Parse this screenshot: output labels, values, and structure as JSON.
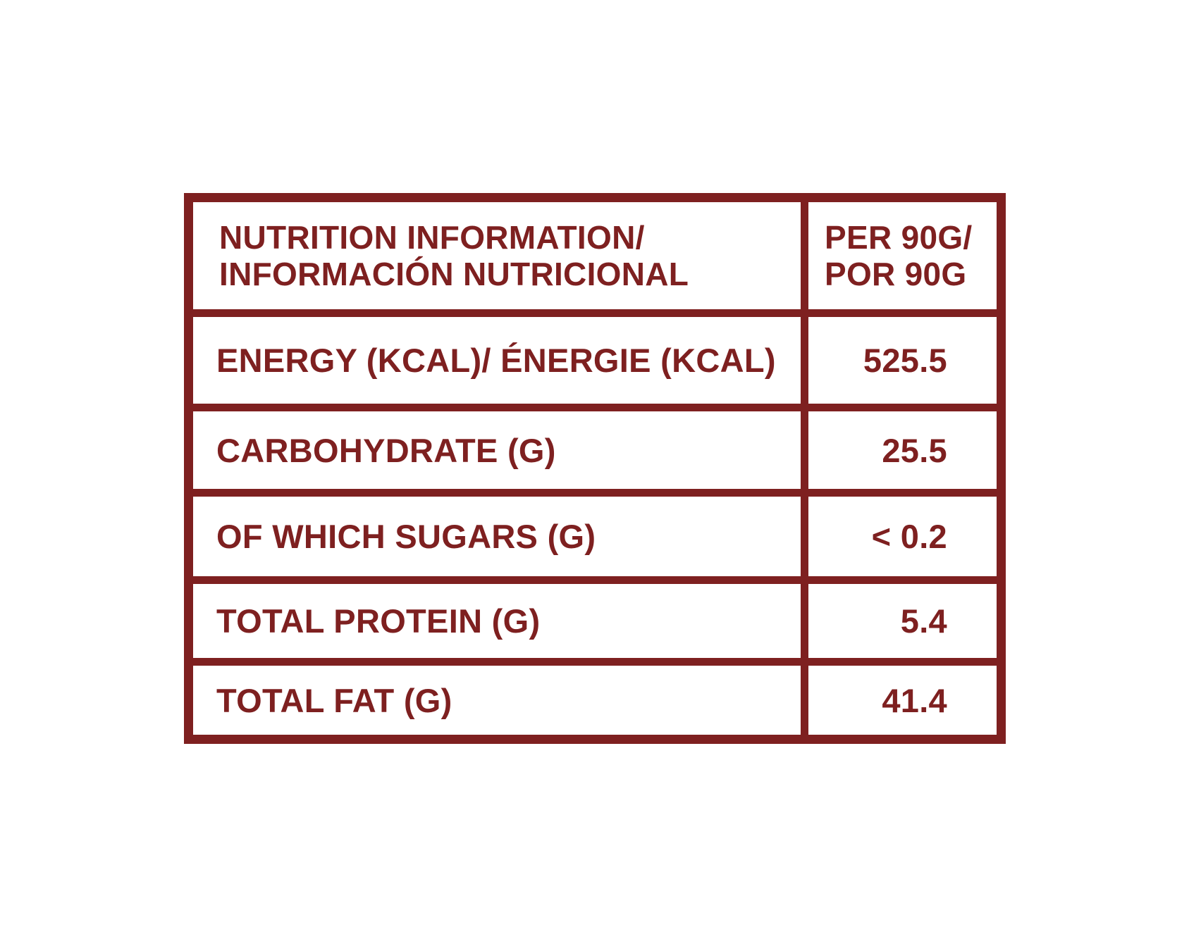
{
  "header": {
    "title_line1": "NUTRITION INFORMATION/",
    "title_line2": "INFORMACIÓN NUTRICIONAL",
    "serving_line1": "PER 90G/",
    "serving_line2": "POR 90G"
  },
  "rows": [
    {
      "label": "ENERGY (KCAL)/ ÉNERGIE (KCAL)",
      "value": "525.5"
    },
    {
      "label": "CARBOHYDRATE (G)",
      "value": "25.5"
    },
    {
      "label": "OF WHICH SUGARS (G)",
      "value": "< 0.2"
    },
    {
      "label": "TOTAL PROTEIN (G)",
      "value": "5.4"
    },
    {
      "label": "TOTAL FAT (G)",
      "value": "41.4"
    }
  ],
  "colors": {
    "accent": "#7e2020",
    "background": "#ffffff"
  }
}
